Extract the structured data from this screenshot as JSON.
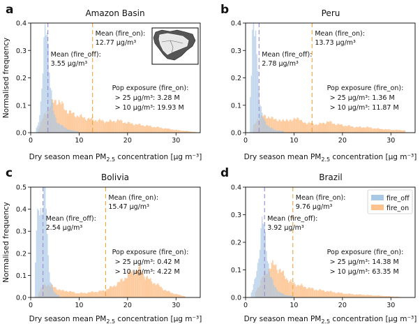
{
  "figure": {
    "xlabel_prefix": "Dry season mean PM",
    "xlabel_sub": "2.5",
    "xlabel_suffix": " concentration [μg m⁻³]",
    "ylabel": "Normalised frequency",
    "legend": [
      {
        "name": "fire_off",
        "color": "#a9c8e6"
      },
      {
        "name": "fire_on",
        "color": "#fdc28d"
      }
    ],
    "colors": {
      "fire_off": "#a9c8e6",
      "fire_on": "#fdc28d",
      "overlap": "#c9b6a6",
      "mean_off_line": "#9b87d6",
      "mean_on_line": "#f2a13a"
    }
  },
  "chart_data": [
    {
      "letter": "a",
      "type": "bar",
      "title": "Amazon Basin",
      "xlim": [
        0,
        35
      ],
      "ylim": [
        0,
        0.4
      ],
      "xticks": [
        "0",
        "10",
        "20",
        "30"
      ],
      "yticks": [
        "0.0",
        "0.1",
        "0.2",
        "0.3",
        "0.4"
      ],
      "mean_off": 3.55,
      "mean_on": 12.77,
      "mean_off_text": "Mean (fire_off):",
      "mean_off_value": "3.55 μg/m³",
      "mean_on_text": "Mean (fire_on):",
      "mean_on_value": "12.77 μg/m³",
      "pop_title": "Pop exposure (fire_on):",
      "pop_25": "> 25 μg/m³: 3.28 M",
      "pop_10": "> 10 μg/m³: 19.93 M",
      "has_map": true,
      "series": [
        {
          "name": "fire_off",
          "values": [
            [
              1.0,
              0.01
            ],
            [
              1.5,
              0.03
            ],
            [
              2.0,
              0.08
            ],
            [
              2.5,
              0.2
            ],
            [
              2.8,
              0.33
            ],
            [
              3.1,
              0.42
            ],
            [
              3.4,
              0.4
            ],
            [
              3.7,
              0.3
            ],
            [
              4.0,
              0.18
            ],
            [
              4.5,
              0.1
            ],
            [
              5.0,
              0.06
            ],
            [
              5.5,
              0.04
            ],
            [
              6.0,
              0.03
            ],
            [
              7.0,
              0.02
            ],
            [
              8.0,
              0.01
            ],
            [
              10.0,
              0.005
            ]
          ]
        },
        {
          "name": "fire_on",
          "values": [
            [
              1.5,
              0.01
            ],
            [
              2.5,
              0.05
            ],
            [
              3.5,
              0.09
            ],
            [
              4.5,
              0.11
            ],
            [
              5.5,
              0.12
            ],
            [
              6.5,
              0.1
            ],
            [
              7.5,
              0.08
            ],
            [
              8.5,
              0.07
            ],
            [
              10.0,
              0.06
            ],
            [
              12.0,
              0.05
            ],
            [
              14.0,
              0.045
            ],
            [
              16.0,
              0.04
            ],
            [
              18.0,
              0.045
            ],
            [
              20.0,
              0.035
            ],
            [
              22.0,
              0.03
            ],
            [
              24.0,
              0.025
            ],
            [
              26.0,
              0.02
            ],
            [
              28.0,
              0.015
            ],
            [
              30.0,
              0.01
            ],
            [
              32.0,
              0.006
            ],
            [
              34.0,
              0.003
            ]
          ]
        }
      ]
    },
    {
      "letter": "b",
      "type": "bar",
      "title": "Peru",
      "xlim": [
        0,
        35
      ],
      "ylim": [
        0,
        0.4
      ],
      "xticks": [
        "0",
        "10",
        "20",
        "30"
      ],
      "yticks": [
        "0.0",
        "0.1",
        "0.2",
        "0.3",
        "0.4"
      ],
      "mean_off": 2.78,
      "mean_on": 13.73,
      "mean_off_text": "Mean (fire_off):",
      "mean_off_value": "2.78 μg/m³",
      "mean_on_text": "Mean (fire_on):",
      "mean_on_value": "13.73 μg/m³",
      "pop_title": "Pop exposure (fire_on):",
      "pop_25": "> 25 μg/m³: 1.36 M",
      "pop_10": "> 10 μg/m³: 11.87 M",
      "has_map": false,
      "series": [
        {
          "name": "fire_off",
          "values": [
            [
              0.8,
              0.05
            ],
            [
              1.2,
              0.2
            ],
            [
              1.5,
              0.42
            ],
            [
              1.8,
              0.3
            ],
            [
              2.1,
              0.42
            ],
            [
              2.4,
              0.25
            ],
            [
              2.7,
              0.2
            ],
            [
              3.0,
              0.1
            ],
            [
              3.5,
              0.06
            ],
            [
              4.0,
              0.04
            ],
            [
              5.0,
              0.02
            ],
            [
              6.0,
              0.01
            ],
            [
              8.0,
              0.005
            ]
          ]
        },
        {
          "name": "fire_on",
          "values": [
            [
              1.5,
              0.02
            ],
            [
              2.5,
              0.05
            ],
            [
              3.5,
              0.06
            ],
            [
              4.5,
              0.06
            ],
            [
              5.5,
              0.05
            ],
            [
              6.5,
              0.05
            ],
            [
              7.5,
              0.04
            ],
            [
              8.5,
              0.05
            ],
            [
              9.5,
              0.04
            ],
            [
              10.5,
              0.06
            ],
            [
              11.5,
              0.04
            ],
            [
              13.0,
              0.035
            ],
            [
              15.0,
              0.03
            ],
            [
              17.0,
              0.04
            ],
            [
              19.0,
              0.03
            ],
            [
              21.0,
              0.025
            ],
            [
              23.0,
              0.02
            ],
            [
              25.0,
              0.02
            ],
            [
              27.0,
              0.015
            ],
            [
              29.0,
              0.012
            ],
            [
              31.0,
              0.01
            ],
            [
              33.0,
              0.008
            ]
          ]
        }
      ]
    },
    {
      "letter": "c",
      "type": "bar",
      "title": "Bolivia",
      "xlim": [
        0,
        35
      ],
      "ylim": [
        0,
        0.5
      ],
      "xticks": [
        "0",
        "10",
        "20",
        "30"
      ],
      "yticks": [
        "0.0",
        "0.1",
        "0.2",
        "0.3",
        "0.4",
        "0.5"
      ],
      "mean_off": 2.54,
      "mean_on": 15.47,
      "mean_off_text": "Mean (fire_off):",
      "mean_off_value": "2.54 μg/m³",
      "mean_on_text": "Mean (fire_on):",
      "mean_on_value": "15.47 μg/m³",
      "pop_title": "Pop exposure (fire_on):",
      "pop_25": "> 25 μg/m³: 0.42 M",
      "pop_10": "> 10 μg/m³: 4.22 M",
      "has_map": false,
      "series": [
        {
          "name": "fire_off",
          "values": [
            [
              0.8,
              0.05
            ],
            [
              1.2,
              0.3
            ],
            [
              1.6,
              0.48
            ],
            [
              2.0,
              0.38
            ],
            [
              2.4,
              0.35
            ],
            [
              2.8,
              0.52
            ],
            [
              3.2,
              0.45
            ],
            [
              3.6,
              0.2
            ],
            [
              4.0,
              0.08
            ],
            [
              4.5,
              0.04
            ],
            [
              5.0,
              0.02
            ],
            [
              6.0,
              0.01
            ]
          ]
        },
        {
          "name": "fire_on",
          "values": [
            [
              1.5,
              0.02
            ],
            [
              2.5,
              0.05
            ],
            [
              3.5,
              0.06
            ],
            [
              4.5,
              0.05
            ],
            [
              5.5,
              0.04
            ],
            [
              6.5,
              0.03
            ],
            [
              7.5,
              0.03
            ],
            [
              8.5,
              0.025
            ],
            [
              9.5,
              0.02
            ],
            [
              11.0,
              0.02
            ],
            [
              13.0,
              0.025
            ],
            [
              15.0,
              0.03
            ],
            [
              17.0,
              0.05
            ],
            [
              19.0,
              0.08
            ],
            [
              20.5,
              0.11
            ],
            [
              21.5,
              0.12
            ],
            [
              22.5,
              0.13
            ],
            [
              23.5,
              0.1
            ],
            [
              24.5,
              0.08
            ],
            [
              26.0,
              0.06
            ],
            [
              28.0,
              0.03
            ],
            [
              30.0,
              0.015
            ],
            [
              32.0,
              0.005
            ]
          ]
        }
      ]
    },
    {
      "letter": "d",
      "type": "bar",
      "title": "Brazil",
      "xlim": [
        0,
        35
      ],
      "ylim": [
        0,
        0.4
      ],
      "xticks": [
        "0",
        "10",
        "20",
        "30"
      ],
      "yticks": [
        "0.0",
        "0.1",
        "0.2",
        "0.3",
        "0.4"
      ],
      "mean_off": 3.92,
      "mean_on": 9.76,
      "mean_off_text": "Mean (fire_off):",
      "mean_off_value": "3.92 μg/m³",
      "mean_on_text": "Mean (fire_on):",
      "mean_on_value": "9.76 μg/m³",
      "pop_title": "Pop exposure (fire_on):",
      "pop_25": "> 25 μg/m³: 14.38 M",
      "pop_10": "> 10 μg/m³: 63.35 M",
      "has_map": false,
      "has_legend": true,
      "series": [
        {
          "name": "fire_off",
          "values": [
            [
              1.0,
              0.01
            ],
            [
              1.5,
              0.03
            ],
            [
              2.0,
              0.07
            ],
            [
              2.5,
              0.12
            ],
            [
              3.0,
              0.2
            ],
            [
              3.5,
              0.28
            ],
            [
              3.8,
              0.25
            ],
            [
              4.2,
              0.2
            ],
            [
              4.6,
              0.14
            ],
            [
              5.0,
              0.09
            ],
            [
              5.5,
              0.06
            ],
            [
              6.0,
              0.04
            ],
            [
              7.0,
              0.02
            ],
            [
              8.0,
              0.01
            ],
            [
              10.0,
              0.005
            ]
          ]
        },
        {
          "name": "fire_on",
          "values": [
            [
              2.0,
              0.02
            ],
            [
              3.0,
              0.05
            ],
            [
              4.0,
              0.09
            ],
            [
              5.0,
              0.11
            ],
            [
              6.0,
              0.12
            ],
            [
              7.0,
              0.1
            ],
            [
              8.0,
              0.08
            ],
            [
              9.0,
              0.06
            ],
            [
              10.0,
              0.05
            ],
            [
              12.0,
              0.04
            ],
            [
              14.0,
              0.03
            ],
            [
              16.0,
              0.025
            ],
            [
              18.0,
              0.02
            ],
            [
              20.0,
              0.015
            ],
            [
              22.0,
              0.012
            ],
            [
              24.0,
              0.01
            ],
            [
              26.0,
              0.008
            ],
            [
              28.0,
              0.006
            ],
            [
              30.0,
              0.004
            ],
            [
              32.0,
              0.002
            ]
          ]
        }
      ]
    }
  ]
}
